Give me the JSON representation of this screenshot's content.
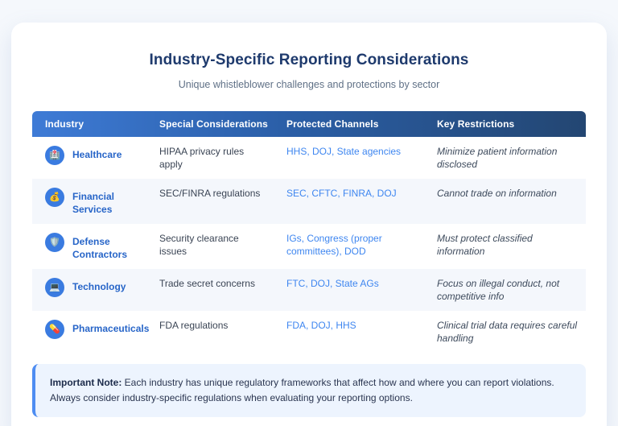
{
  "page": {
    "title": "Industry-Specific Reporting Considerations",
    "subtitle": "Unique whistleblower challenges and protections by sector"
  },
  "table": {
    "headers": [
      "Industry",
      "Special Considerations",
      "Protected Channels",
      "Key Restrictions"
    ],
    "rows": [
      {
        "icon": "🏥",
        "industry": "Healthcare",
        "considerations": "HIPAA privacy rules apply",
        "channels": "HHS, DOJ, State agencies",
        "restrictions": "Minimize patient information disclosed"
      },
      {
        "icon": "💰",
        "industry": "Financial Services",
        "considerations": "SEC/FINRA regulations",
        "channels": "SEC, CFTC, FINRA, DOJ",
        "restrictions": "Cannot trade on information"
      },
      {
        "icon": "🛡️",
        "industry": "Defense Contractors",
        "considerations": "Security clearance issues",
        "channels": "IGs, Congress (proper committees), DOD",
        "restrictions": "Must protect classified information"
      },
      {
        "icon": "💻",
        "industry": "Technology",
        "considerations": "Trade secret concerns",
        "channels": "FTC, DOJ, State AGs",
        "restrictions": "Focus on illegal conduct, not competitive info"
      },
      {
        "icon": "💊",
        "industry": "Pharmaceuticals",
        "considerations": "FDA regulations",
        "channels": "FDA, DOJ, HHS",
        "restrictions": "Clinical trial data requires careful handling"
      }
    ]
  },
  "note": {
    "label": "Important Note:",
    "text": " Each industry has unique regulatory frameworks that affect how and where you can report violations. Always consider industry-specific regulations when evaluating your reporting options."
  },
  "colors": {
    "header_gradient_start": "#3e7bd6",
    "header_gradient_end": "#234672",
    "title_navy": "#1e3a6d",
    "industry_name_blue": "#2765c8",
    "channel_link_blue": "#3e86f0",
    "icon_circle_blue": "#3a7be0",
    "row_alt_bg": "#f4f7fc",
    "note_bg": "#edf4fe",
    "note_border": "#4e8df2",
    "page_bg": "#f5f8fc"
  }
}
